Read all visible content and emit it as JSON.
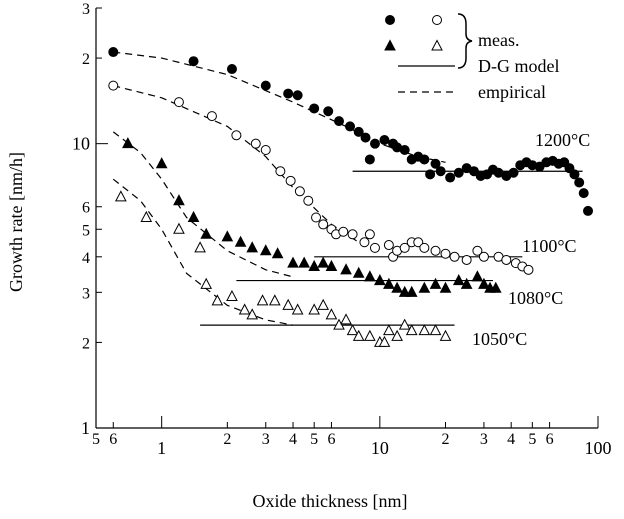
{
  "chart_data": {
    "type": "scatter",
    "log_x": true,
    "log_y": true,
    "xlabel": "Oxide thickness [nm]",
    "ylabel": "Growth rate [nm/h]",
    "xlim": [
      0.5,
      100
    ],
    "ylim": [
      1,
      30
    ],
    "xticks": [
      {
        "value": 0.5,
        "label": "5"
      },
      {
        "value": 0.6,
        "label": "6"
      },
      1,
      {
        "value": 2,
        "label": "2"
      },
      {
        "value": 3,
        "label": "3"
      },
      {
        "value": 4,
        "label": "4"
      },
      {
        "value": 5,
        "label": "5"
      },
      {
        "value": 6,
        "label": "6"
      },
      10,
      {
        "value": 20,
        "label": "2"
      },
      {
        "value": 30,
        "label": "3"
      },
      {
        "value": 40,
        "label": "4"
      },
      {
        "value": 50,
        "label": "5"
      },
      {
        "value": 60,
        "label": "6"
      },
      100
    ],
    "yticks": [
      1,
      {
        "value": 2,
        "label": "2"
      },
      {
        "value": 3,
        "label": "3"
      },
      {
        "value": 4,
        "label": "4"
      },
      {
        "value": 5,
        "label": "5"
      },
      {
        "value": 6,
        "label": "6"
      },
      10,
      {
        "value": 20,
        "label": "2"
      },
      {
        "value": 30,
        "label": "3"
      }
    ],
    "legend": {
      "measured": "meas.",
      "model": "D-G model",
      "empirical": "empirical"
    },
    "color": "#000000",
    "series": [
      {
        "label": "1200°C",
        "marker": "circle",
        "filled": true,
        "x": [
          0.6,
          1.4,
          2.1,
          3.0,
          3.8,
          4.2,
          5.0,
          5.8,
          6.5,
          7.3,
          8,
          8.6,
          9.0,
          9.5,
          10.5,
          11.5,
          12,
          13,
          14,
          15,
          16,
          17,
          18,
          19,
          21,
          23,
          25,
          27,
          29,
          31,
          33,
          35,
          38,
          41,
          44,
          47,
          50,
          54,
          58,
          62,
          66,
          70,
          74,
          78,
          82,
          86,
          90
        ],
        "y": [
          21,
          19.5,
          18.3,
          16,
          15,
          14.8,
          13.3,
          13,
          12,
          11.5,
          11,
          10.5,
          8.8,
          10,
          10.3,
          10,
          9.7,
          9.5,
          8.8,
          9,
          8.8,
          7.8,
          8.5,
          8,
          7.6,
          7.9,
          8.2,
          8.0,
          7.7,
          7.8,
          8.1,
          7.9,
          7.7,
          7.9,
          8.4,
          8.6,
          8.4,
          8.3,
          8.6,
          8.7,
          8.5,
          8.6,
          8.2,
          7.8,
          7.3,
          6.7,
          5.8
        ]
      },
      {
        "label": "1100°C",
        "marker": "circle",
        "filled": false,
        "x": [
          0.6,
          1.2,
          1.7,
          2.2,
          2.7,
          3.0,
          3.5,
          3.9,
          4.3,
          4.7,
          5.1,
          5.5,
          6,
          6.3,
          6.8,
          7.5,
          8.5,
          9,
          9.5,
          11,
          11.5,
          12,
          13,
          14,
          15,
          16,
          18,
          20,
          22,
          25,
          28,
          30,
          35,
          38,
          42,
          45,
          48
        ],
        "y": [
          16,
          14,
          12.5,
          10.7,
          10,
          9.5,
          8,
          7.4,
          6.8,
          6.3,
          5.5,
          5.2,
          5,
          4.8,
          4.9,
          4.8,
          4.5,
          4.8,
          4.3,
          4.4,
          4,
          4.2,
          4.3,
          4.5,
          4.5,
          4.3,
          4.2,
          4.1,
          4,
          3.9,
          4.2,
          4,
          4,
          3.9,
          3.8,
          3.7,
          3.6
        ]
      },
      {
        "label": "1080°C",
        "marker": "triangle",
        "filled": true,
        "x": [
          0.7,
          1.0,
          1.2,
          1.4,
          1.6,
          2.0,
          2.3,
          2.6,
          3,
          3.4,
          4,
          4.5,
          5,
          5.5,
          6,
          7,
          8,
          9,
          10,
          11,
          12,
          13,
          14,
          16,
          18,
          20,
          23,
          25,
          28,
          30,
          32,
          34
        ],
        "y": [
          10,
          8.5,
          6.3,
          5.5,
          4.8,
          4.7,
          4.5,
          4.3,
          4.2,
          4.1,
          3.8,
          3.8,
          3.7,
          3.8,
          3.7,
          3.6,
          3.5,
          3.4,
          3.3,
          3.2,
          3.1,
          3,
          3,
          3.1,
          3.2,
          3.1,
          3.3,
          3.2,
          3.4,
          3.2,
          3.1,
          3.1
        ]
      },
      {
        "label": "1050°C",
        "marker": "triangle",
        "filled": false,
        "x": [
          0.65,
          0.85,
          1.2,
          1.5,
          1.6,
          1.8,
          2.1,
          2.4,
          2.6,
          2.9,
          3.3,
          3.8,
          4.2,
          5.0,
          5.5,
          6,
          6.5,
          7,
          7.5,
          8,
          9,
          10,
          10.5,
          11,
          12,
          13,
          14,
          16,
          18,
          20
        ],
        "y": [
          6.5,
          5.5,
          5,
          4.3,
          3.2,
          2.8,
          2.9,
          2.6,
          2.5,
          2.8,
          2.8,
          2.7,
          2.6,
          2.6,
          2.7,
          2.5,
          2.3,
          2.4,
          2.2,
          2.1,
          2.1,
          2,
          2.0,
          2.2,
          2.1,
          2.3,
          2.2,
          2.2,
          2.2,
          2.1
        ]
      }
    ],
    "model_lines": [
      {
        "x": [
          7.5,
          85
        ],
        "y": [
          8,
          8
        ]
      },
      {
        "x": [
          5,
          45
        ],
        "y": [
          4,
          4
        ]
      },
      {
        "x": [
          2.2,
          33
        ],
        "y": [
          3.3,
          3.3
        ]
      },
      {
        "x": [
          1.5,
          22
        ],
        "y": [
          2.3,
          2.3
        ]
      }
    ],
    "empirical_curves": [
      {
        "x": [
          0.6,
          1,
          2,
          4,
          7,
          10,
          15,
          20
        ],
        "y": [
          21,
          20,
          17.5,
          14,
          11.5,
          10,
          9,
          8.6
        ]
      },
      {
        "x": [
          0.6,
          1,
          2,
          3,
          4,
          6,
          8,
          10
        ],
        "y": [
          16,
          14.5,
          11.5,
          9,
          7,
          5.2,
          4.5,
          4.3
        ]
      },
      {
        "x": [
          0.6,
          0.8,
          1,
          1.3,
          2,
          3,
          4
        ],
        "y": [
          11,
          9.3,
          7.5,
          5.5,
          4.2,
          3.6,
          3.4
        ]
      },
      {
        "x": [
          0.6,
          0.8,
          1,
          1.3,
          2,
          3,
          4
        ],
        "y": [
          7.5,
          6.3,
          5,
          3.5,
          2.7,
          2.4,
          2.3
        ]
      }
    ]
  }
}
